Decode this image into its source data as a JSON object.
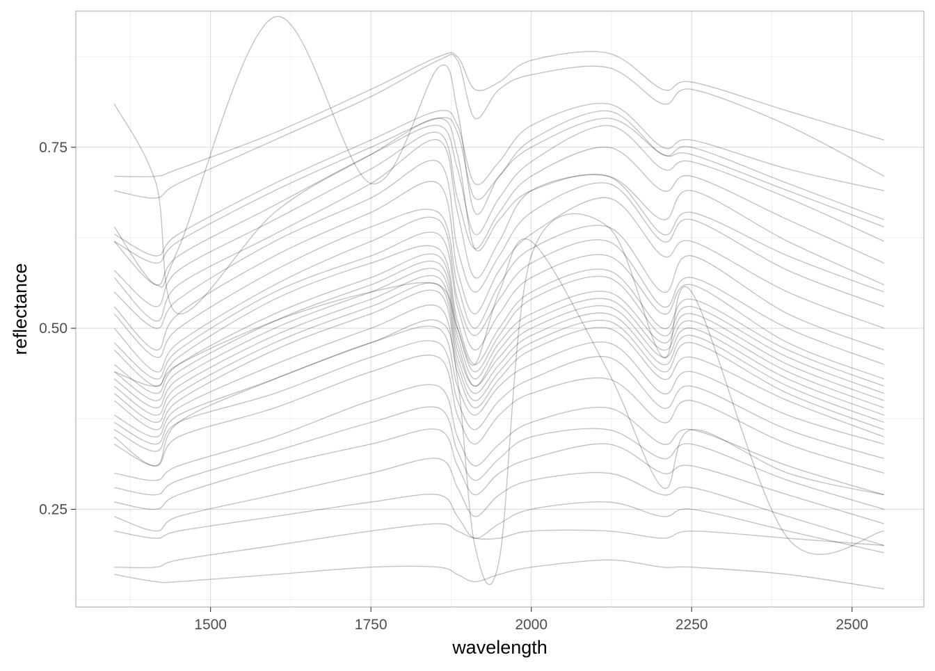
{
  "chart_data": {
    "type": "line",
    "title": "",
    "xlabel": "wavelength",
    "ylabel": "reflectance",
    "xlim": [
      1290,
      2612
    ],
    "ylim": [
      0.115,
      0.938
    ],
    "x_ticks": [
      1500,
      1750,
      2000,
      2250,
      2500
    ],
    "x_tick_labels": [
      "1500",
      "1750",
      "2000",
      "2250",
      "2500"
    ],
    "y_ticks": [
      0.25,
      0.5,
      0.75
    ],
    "y_tick_labels": [
      "0.25",
      "0.50",
      "0.75"
    ],
    "grid": true,
    "legend": "none",
    "line_color": "#000000",
    "x": [
      1350,
      1415,
      1450,
      1600,
      1750,
      1855,
      1885,
      1912,
      1950,
      2000,
      2120,
      2205,
      2250,
      2400,
      2550
    ],
    "series": [
      {
        "values": [
          0.71,
          0.71,
          0.72,
          0.77,
          0.83,
          0.875,
          0.875,
          0.83,
          0.84,
          0.87,
          0.88,
          0.83,
          0.84,
          0.8,
          0.76
        ]
      },
      {
        "values": [
          0.69,
          0.68,
          0.7,
          0.76,
          0.82,
          0.87,
          0.87,
          0.79,
          0.83,
          0.85,
          0.86,
          0.81,
          0.83,
          0.78,
          0.71
        ]
      },
      {
        "values": [
          0.63,
          0.6,
          0.63,
          0.7,
          0.76,
          0.8,
          0.78,
          0.7,
          0.73,
          0.78,
          0.81,
          0.75,
          0.76,
          0.72,
          0.69
        ]
      },
      {
        "values": [
          0.62,
          0.59,
          0.62,
          0.69,
          0.75,
          0.79,
          0.77,
          0.68,
          0.71,
          0.76,
          0.8,
          0.74,
          0.75,
          0.7,
          0.65
        ]
      },
      {
        "values": [
          0.62,
          0.56,
          0.6,
          0.67,
          0.74,
          0.78,
          0.72,
          0.63,
          0.68,
          0.73,
          0.78,
          0.72,
          0.73,
          0.68,
          0.62
        ]
      },
      {
        "values": [
          0.58,
          0.53,
          0.58,
          0.65,
          0.72,
          0.77,
          0.68,
          0.61,
          0.66,
          0.71,
          0.75,
          0.69,
          0.71,
          0.65,
          0.59
        ]
      },
      {
        "values": [
          0.57,
          0.51,
          0.56,
          0.63,
          0.7,
          0.76,
          0.66,
          0.57,
          0.62,
          0.69,
          0.71,
          0.65,
          0.69,
          0.62,
          0.56
        ]
      },
      {
        "values": [
          0.55,
          0.5,
          0.54,
          0.62,
          0.68,
          0.73,
          0.61,
          0.55,
          0.6,
          0.66,
          0.7,
          0.62,
          0.65,
          0.58,
          0.53
        ]
      },
      {
        "values": [
          0.53,
          0.47,
          0.52,
          0.6,
          0.66,
          0.7,
          0.58,
          0.52,
          0.58,
          0.63,
          0.68,
          0.6,
          0.62,
          0.55,
          0.5
        ]
      },
      {
        "values": [
          0.52,
          0.46,
          0.5,
          0.58,
          0.64,
          0.66,
          0.56,
          0.5,
          0.56,
          0.61,
          0.64,
          0.55,
          0.6,
          0.52,
          0.47
        ]
      },
      {
        "values": [
          0.5,
          0.44,
          0.48,
          0.56,
          0.62,
          0.65,
          0.54,
          0.49,
          0.54,
          0.59,
          0.62,
          0.53,
          0.57,
          0.5,
          0.45
        ]
      },
      {
        "values": [
          0.48,
          0.43,
          0.47,
          0.55,
          0.6,
          0.63,
          0.53,
          0.47,
          0.52,
          0.57,
          0.6,
          0.52,
          0.56,
          0.48,
          0.43
        ]
      },
      {
        "values": [
          0.47,
          0.42,
          0.46,
          0.54,
          0.59,
          0.61,
          0.51,
          0.45,
          0.5,
          0.55,
          0.58,
          0.5,
          0.54,
          0.47,
          0.42
        ]
      },
      {
        "values": [
          0.45,
          0.41,
          0.45,
          0.52,
          0.57,
          0.6,
          0.5,
          0.44,
          0.49,
          0.54,
          0.57,
          0.49,
          0.53,
          0.46,
          0.41
        ]
      },
      {
        "values": [
          0.44,
          0.4,
          0.44,
          0.51,
          0.56,
          0.59,
          0.49,
          0.43,
          0.48,
          0.52,
          0.55,
          0.48,
          0.52,
          0.45,
          0.4
        ]
      },
      {
        "values": [
          0.43,
          0.39,
          0.43,
          0.5,
          0.55,
          0.58,
          0.48,
          0.42,
          0.47,
          0.51,
          0.54,
          0.47,
          0.51,
          0.44,
          0.39
        ]
      },
      {
        "values": [
          0.42,
          0.38,
          0.42,
          0.49,
          0.54,
          0.57,
          0.47,
          0.42,
          0.46,
          0.5,
          0.53,
          0.46,
          0.5,
          0.43,
          0.38
        ]
      },
      {
        "values": [
          0.41,
          0.37,
          0.41,
          0.48,
          0.53,
          0.56,
          0.46,
          0.41,
          0.45,
          0.49,
          0.52,
          0.45,
          0.49,
          0.42,
          0.37
        ]
      },
      {
        "values": [
          0.4,
          0.36,
          0.4,
          0.47,
          0.52,
          0.55,
          0.45,
          0.4,
          0.44,
          0.48,
          0.51,
          0.44,
          0.48,
          0.41,
          0.36
        ]
      },
      {
        "values": [
          0.38,
          0.35,
          0.39,
          0.45,
          0.5,
          0.53,
          0.44,
          0.39,
          0.43,
          0.47,
          0.5,
          0.43,
          0.46,
          0.4,
          0.35
        ]
      },
      {
        "values": [
          0.37,
          0.34,
          0.38,
          0.43,
          0.48,
          0.5,
          0.42,
          0.38,
          0.42,
          0.45,
          0.48,
          0.41,
          0.44,
          0.38,
          0.34
        ]
      },
      {
        "values": [
          0.36,
          0.33,
          0.37,
          0.41,
          0.46,
          0.48,
          0.4,
          0.36,
          0.4,
          0.43,
          0.46,
          0.39,
          0.42,
          0.36,
          0.32
        ]
      },
      {
        "values": [
          0.34,
          0.31,
          0.35,
          0.39,
          0.44,
          0.46,
          0.38,
          0.34,
          0.38,
          0.41,
          0.43,
          0.37,
          0.4,
          0.34,
          0.3
        ]
      },
      {
        "values": [
          0.3,
          0.29,
          0.31,
          0.35,
          0.4,
          0.42,
          0.35,
          0.31,
          0.34,
          0.37,
          0.39,
          0.34,
          0.36,
          0.31,
          0.27
        ]
      },
      {
        "values": [
          0.28,
          0.27,
          0.29,
          0.33,
          0.37,
          0.39,
          0.33,
          0.29,
          0.32,
          0.35,
          0.36,
          0.32,
          0.34,
          0.29,
          0.25
        ]
      },
      {
        "values": [
          0.26,
          0.25,
          0.27,
          0.31,
          0.34,
          0.36,
          0.31,
          0.27,
          0.3,
          0.32,
          0.34,
          0.3,
          0.31,
          0.27,
          0.23
        ]
      },
      {
        "values": [
          0.24,
          0.22,
          0.24,
          0.27,
          0.3,
          0.32,
          0.28,
          0.24,
          0.27,
          0.29,
          0.3,
          0.27,
          0.28,
          0.24,
          0.2
        ]
      },
      {
        "values": [
          0.22,
          0.21,
          0.22,
          0.24,
          0.26,
          0.27,
          0.24,
          0.21,
          0.23,
          0.25,
          0.26,
          0.24,
          0.25,
          0.22,
          0.19
        ]
      },
      {
        "values": [
          0.17,
          0.17,
          0.18,
          0.2,
          0.22,
          0.23,
          0.22,
          0.21,
          0.21,
          0.22,
          0.22,
          0.21,
          0.22,
          0.21,
          0.2
        ]
      },
      {
        "values": [
          0.16,
          0.15,
          0.15,
          0.16,
          0.17,
          0.17,
          0.16,
          0.15,
          0.16,
          0.17,
          0.18,
          0.17,
          0.17,
          0.16,
          0.14
        ]
      },
      {
        "values": [
          0.64,
          0.56,
          0.61,
          0.93,
          0.7,
          0.86,
          0.8,
          0.66,
          0.71,
          0.75,
          0.79,
          0.74,
          0.74,
          0.69,
          0.64
        ]
      },
      {
        "values": [
          0.81,
          0.7,
          0.52,
          0.66,
          0.74,
          0.79,
          0.74,
          0.61,
          0.65,
          0.69,
          0.71,
          0.63,
          0.66,
          0.6,
          0.55
        ]
      },
      {
        "values": [
          0.35,
          0.31,
          0.37,
          0.43,
          0.48,
          0.51,
          0.43,
          0.2,
          0.18,
          0.6,
          0.64,
          0.46,
          0.55,
          0.21,
          0.22
        ]
      },
      {
        "values": [
          0.44,
          0.42,
          0.45,
          0.51,
          0.55,
          0.56,
          0.5,
          0.45,
          0.55,
          0.62,
          0.44,
          0.28,
          0.36,
          0.3,
          0.27
        ]
      }
    ]
  }
}
